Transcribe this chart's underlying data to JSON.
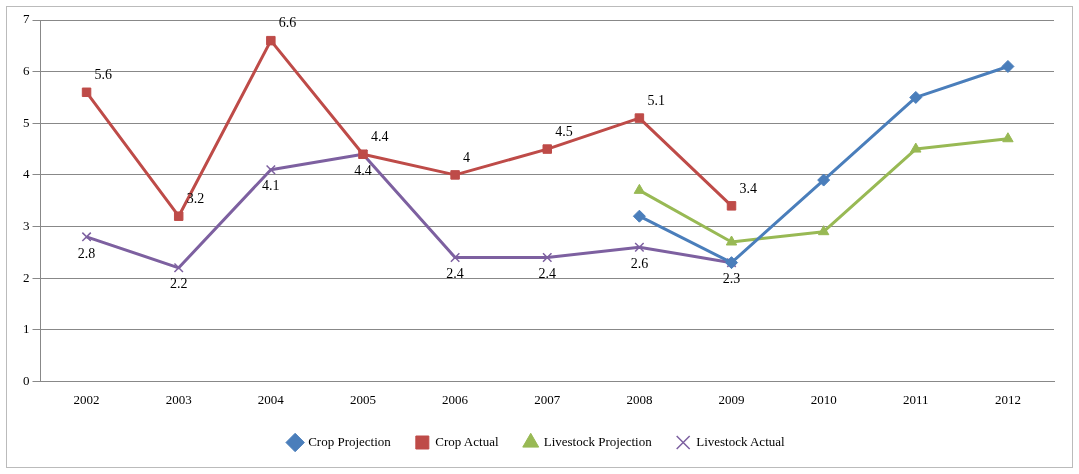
{
  "chart_data": {
    "type": "line",
    "categories": [
      "2002",
      "2003",
      "2004",
      "2005",
      "2006",
      "2007",
      "2008",
      "2009",
      "2010",
      "2011",
      "2012"
    ],
    "ylim": [
      0,
      7
    ],
    "yticks": [
      0,
      1,
      2,
      3,
      4,
      5,
      6,
      7
    ],
    "grid": "y",
    "legend": "bottom",
    "series": [
      {
        "name": "Crop Projection",
        "color": "#4a7ebb",
        "marker": "diamond",
        "values": [
          null,
          null,
          null,
          null,
          null,
          null,
          3.2,
          2.3,
          3.9,
          5.5,
          6.1
        ]
      },
      {
        "name": "Crop Actual",
        "color": "#be4b48",
        "marker": "square",
        "values": [
          5.6,
          3.2,
          6.6,
          4.4,
          4,
          4.5,
          5.1,
          3.4,
          null,
          null,
          null
        ],
        "value_labels": [
          "5.6",
          "3.2",
          "6.6",
          "4.4",
          "4",
          "4.5",
          "5.1",
          "3.4",
          null,
          null,
          null
        ]
      },
      {
        "name": "Livestock Projection",
        "color": "#98b954",
        "marker": "triangle",
        "values": [
          null,
          null,
          null,
          null,
          null,
          null,
          3.7,
          2.7,
          2.9,
          4.5,
          4.7
        ]
      },
      {
        "name": "Livestock Actual",
        "color": "#7d60a0",
        "marker": "cross",
        "values": [
          2.8,
          2.2,
          4.1,
          4.4,
          2.4,
          2.4,
          2.6,
          2.3,
          null,
          null,
          null
        ],
        "value_labels": [
          "2.8",
          "2.2",
          "4.1",
          "4.4",
          "2.4",
          "2.4",
          "2.6",
          "2.3",
          null,
          null,
          null
        ]
      }
    ]
  }
}
